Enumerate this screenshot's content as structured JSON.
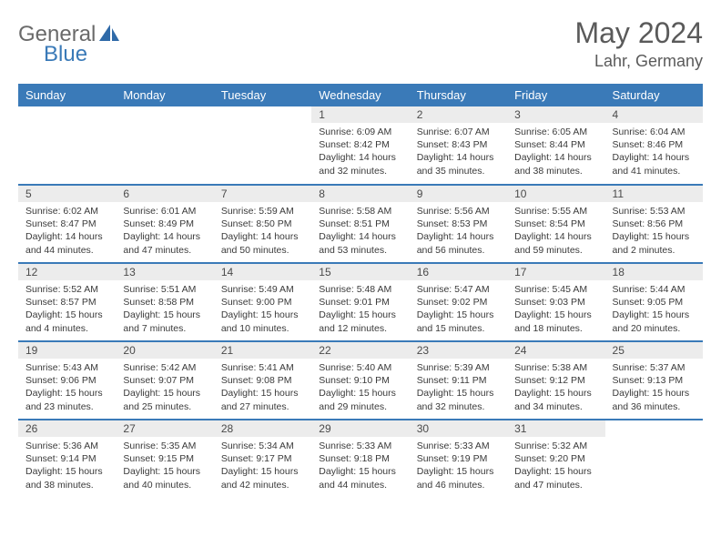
{
  "brand": {
    "part1": "General",
    "part2": "Blue"
  },
  "title": "May 2024",
  "location": "Lahr, Germany",
  "weekdays": [
    "Sunday",
    "Monday",
    "Tuesday",
    "Wednesday",
    "Thursday",
    "Friday",
    "Saturday"
  ],
  "colors": {
    "header_bg": "#3a7ab8",
    "header_fg": "#ffffff",
    "daynum_bg": "#ececec",
    "border": "#3a7ab8",
    "brand_gray": "#6a6a6a",
    "brand_blue": "#3a7ab8"
  },
  "weeks": [
    [
      {
        "day": "",
        "sunrise": "",
        "sunset": "",
        "daylight": ""
      },
      {
        "day": "",
        "sunrise": "",
        "sunset": "",
        "daylight": ""
      },
      {
        "day": "",
        "sunrise": "",
        "sunset": "",
        "daylight": ""
      },
      {
        "day": "1",
        "sunrise": "Sunrise: 6:09 AM",
        "sunset": "Sunset: 8:42 PM",
        "daylight": "Daylight: 14 hours and 32 minutes."
      },
      {
        "day": "2",
        "sunrise": "Sunrise: 6:07 AM",
        "sunset": "Sunset: 8:43 PM",
        "daylight": "Daylight: 14 hours and 35 minutes."
      },
      {
        "day": "3",
        "sunrise": "Sunrise: 6:05 AM",
        "sunset": "Sunset: 8:44 PM",
        "daylight": "Daylight: 14 hours and 38 minutes."
      },
      {
        "day": "4",
        "sunrise": "Sunrise: 6:04 AM",
        "sunset": "Sunset: 8:46 PM",
        "daylight": "Daylight: 14 hours and 41 minutes."
      }
    ],
    [
      {
        "day": "5",
        "sunrise": "Sunrise: 6:02 AM",
        "sunset": "Sunset: 8:47 PM",
        "daylight": "Daylight: 14 hours and 44 minutes."
      },
      {
        "day": "6",
        "sunrise": "Sunrise: 6:01 AM",
        "sunset": "Sunset: 8:49 PM",
        "daylight": "Daylight: 14 hours and 47 minutes."
      },
      {
        "day": "7",
        "sunrise": "Sunrise: 5:59 AM",
        "sunset": "Sunset: 8:50 PM",
        "daylight": "Daylight: 14 hours and 50 minutes."
      },
      {
        "day": "8",
        "sunrise": "Sunrise: 5:58 AM",
        "sunset": "Sunset: 8:51 PM",
        "daylight": "Daylight: 14 hours and 53 minutes."
      },
      {
        "day": "9",
        "sunrise": "Sunrise: 5:56 AM",
        "sunset": "Sunset: 8:53 PM",
        "daylight": "Daylight: 14 hours and 56 minutes."
      },
      {
        "day": "10",
        "sunrise": "Sunrise: 5:55 AM",
        "sunset": "Sunset: 8:54 PM",
        "daylight": "Daylight: 14 hours and 59 minutes."
      },
      {
        "day": "11",
        "sunrise": "Sunrise: 5:53 AM",
        "sunset": "Sunset: 8:56 PM",
        "daylight": "Daylight: 15 hours and 2 minutes."
      }
    ],
    [
      {
        "day": "12",
        "sunrise": "Sunrise: 5:52 AM",
        "sunset": "Sunset: 8:57 PM",
        "daylight": "Daylight: 15 hours and 4 minutes."
      },
      {
        "day": "13",
        "sunrise": "Sunrise: 5:51 AM",
        "sunset": "Sunset: 8:58 PM",
        "daylight": "Daylight: 15 hours and 7 minutes."
      },
      {
        "day": "14",
        "sunrise": "Sunrise: 5:49 AM",
        "sunset": "Sunset: 9:00 PM",
        "daylight": "Daylight: 15 hours and 10 minutes."
      },
      {
        "day": "15",
        "sunrise": "Sunrise: 5:48 AM",
        "sunset": "Sunset: 9:01 PM",
        "daylight": "Daylight: 15 hours and 12 minutes."
      },
      {
        "day": "16",
        "sunrise": "Sunrise: 5:47 AM",
        "sunset": "Sunset: 9:02 PM",
        "daylight": "Daylight: 15 hours and 15 minutes."
      },
      {
        "day": "17",
        "sunrise": "Sunrise: 5:45 AM",
        "sunset": "Sunset: 9:03 PM",
        "daylight": "Daylight: 15 hours and 18 minutes."
      },
      {
        "day": "18",
        "sunrise": "Sunrise: 5:44 AM",
        "sunset": "Sunset: 9:05 PM",
        "daylight": "Daylight: 15 hours and 20 minutes."
      }
    ],
    [
      {
        "day": "19",
        "sunrise": "Sunrise: 5:43 AM",
        "sunset": "Sunset: 9:06 PM",
        "daylight": "Daylight: 15 hours and 23 minutes."
      },
      {
        "day": "20",
        "sunrise": "Sunrise: 5:42 AM",
        "sunset": "Sunset: 9:07 PM",
        "daylight": "Daylight: 15 hours and 25 minutes."
      },
      {
        "day": "21",
        "sunrise": "Sunrise: 5:41 AM",
        "sunset": "Sunset: 9:08 PM",
        "daylight": "Daylight: 15 hours and 27 minutes."
      },
      {
        "day": "22",
        "sunrise": "Sunrise: 5:40 AM",
        "sunset": "Sunset: 9:10 PM",
        "daylight": "Daylight: 15 hours and 29 minutes."
      },
      {
        "day": "23",
        "sunrise": "Sunrise: 5:39 AM",
        "sunset": "Sunset: 9:11 PM",
        "daylight": "Daylight: 15 hours and 32 minutes."
      },
      {
        "day": "24",
        "sunrise": "Sunrise: 5:38 AM",
        "sunset": "Sunset: 9:12 PM",
        "daylight": "Daylight: 15 hours and 34 minutes."
      },
      {
        "day": "25",
        "sunrise": "Sunrise: 5:37 AM",
        "sunset": "Sunset: 9:13 PM",
        "daylight": "Daylight: 15 hours and 36 minutes."
      }
    ],
    [
      {
        "day": "26",
        "sunrise": "Sunrise: 5:36 AM",
        "sunset": "Sunset: 9:14 PM",
        "daylight": "Daylight: 15 hours and 38 minutes."
      },
      {
        "day": "27",
        "sunrise": "Sunrise: 5:35 AM",
        "sunset": "Sunset: 9:15 PM",
        "daylight": "Daylight: 15 hours and 40 minutes."
      },
      {
        "day": "28",
        "sunrise": "Sunrise: 5:34 AM",
        "sunset": "Sunset: 9:17 PM",
        "daylight": "Daylight: 15 hours and 42 minutes."
      },
      {
        "day": "29",
        "sunrise": "Sunrise: 5:33 AM",
        "sunset": "Sunset: 9:18 PM",
        "daylight": "Daylight: 15 hours and 44 minutes."
      },
      {
        "day": "30",
        "sunrise": "Sunrise: 5:33 AM",
        "sunset": "Sunset: 9:19 PM",
        "daylight": "Daylight: 15 hours and 46 minutes."
      },
      {
        "day": "31",
        "sunrise": "Sunrise: 5:32 AM",
        "sunset": "Sunset: 9:20 PM",
        "daylight": "Daylight: 15 hours and 47 minutes."
      },
      {
        "day": "",
        "sunrise": "",
        "sunset": "",
        "daylight": ""
      }
    ]
  ]
}
